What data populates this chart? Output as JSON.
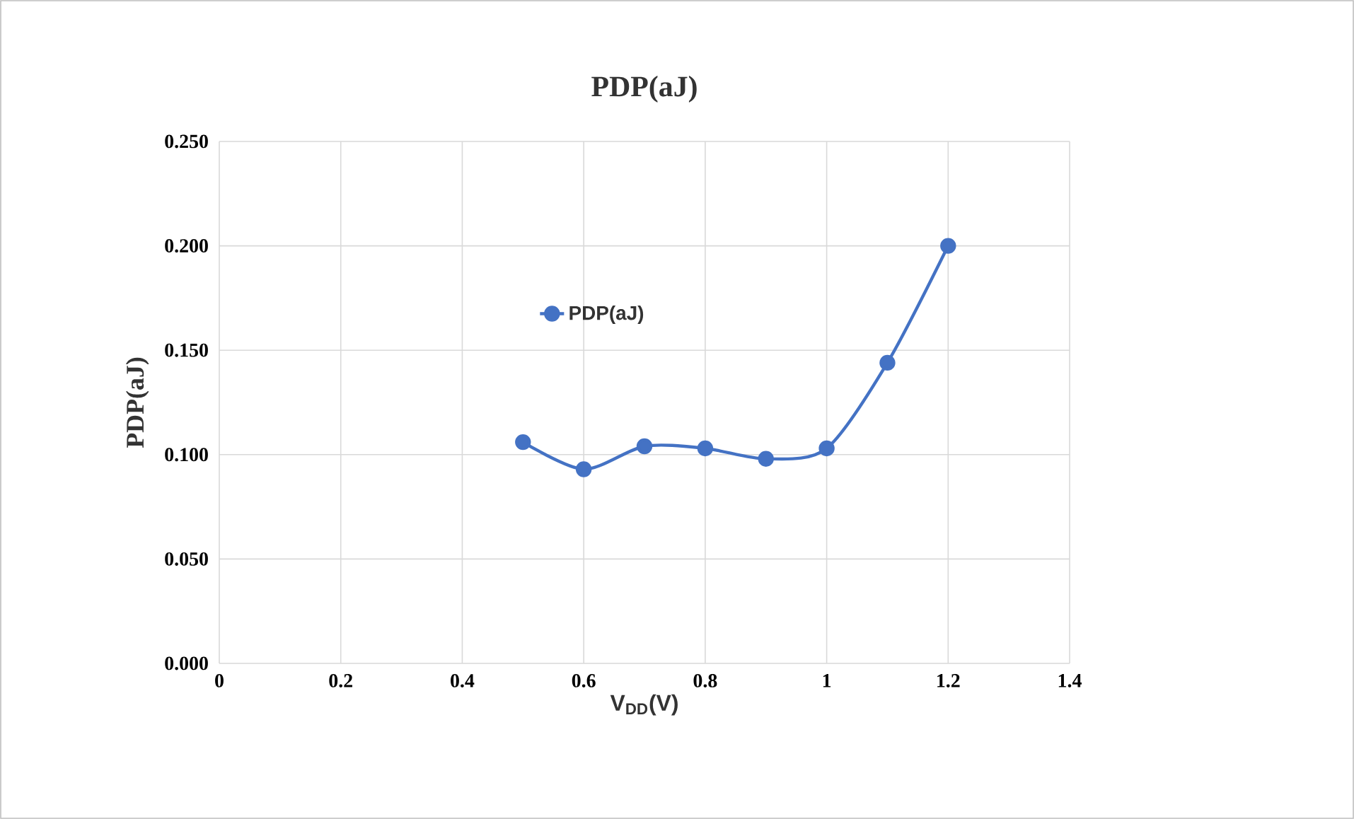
{
  "chart_data": {
    "type": "line",
    "title": "PDP(aJ)",
    "xlabel": "V$_{DD}$(V)",
    "ylabel": "PDP(aJ)",
    "x": [
      0.5,
      0.6,
      0.7,
      0.8,
      0.9,
      1.0,
      1.1,
      1.2
    ],
    "series": [
      {
        "name": "PDP(aJ)",
        "color": "#4472c4",
        "values": [
          0.106,
          0.093,
          0.104,
          0.103,
          0.098,
          0.103,
          0.144,
          0.2
        ]
      }
    ],
    "xlim": [
      0,
      1.4
    ],
    "xticks": [
      0,
      0.2,
      0.4,
      0.6,
      0.8,
      1,
      1.2,
      1.4
    ],
    "ylim": [
      0,
      0.25
    ],
    "yticks": [
      {
        "value": 0,
        "label": "0.000"
      },
      {
        "value": 0.05,
        "label": "0.050"
      },
      {
        "value": 0.1,
        "label": "0.100"
      },
      {
        "value": 0.15,
        "label": "0.150"
      },
      {
        "value": 0.2,
        "label": "0.200"
      },
      {
        "value": 0.25,
        "label": "0.250"
      }
    ],
    "grid": true,
    "legend": "top",
    "marker": "circle",
    "line_style": "solid"
  }
}
